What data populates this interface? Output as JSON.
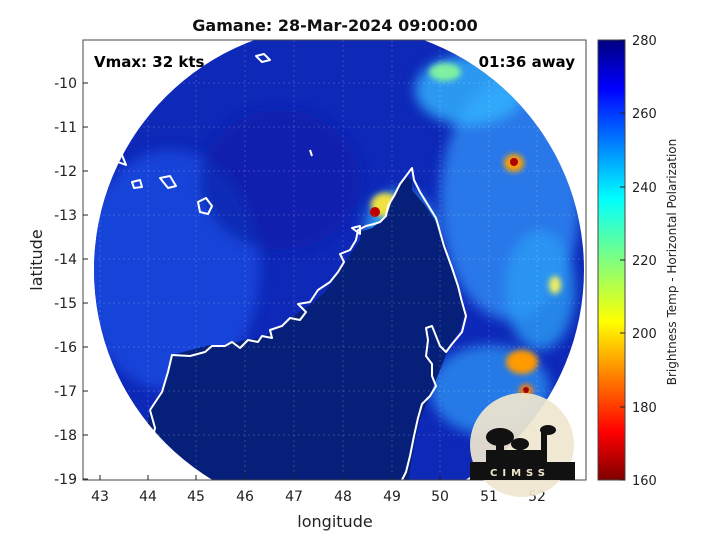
{
  "title": "Gamane: 28-Mar-2024 09:00:00",
  "annotations": {
    "vmax": "Vmax: 32 kts",
    "time_away": "01:36 away"
  },
  "xaxis": {
    "label": "longitude",
    "range": [
      42.6,
      52.9
    ],
    "ticks": [
      43,
      44,
      45,
      46,
      47,
      48,
      49,
      50,
      51,
      52
    ]
  },
  "yaxis": {
    "label": "latitude",
    "range": [
      -19.05,
      -9.15
    ],
    "ticks": [
      -10,
      -11,
      -12,
      -13,
      -14,
      -15,
      -16,
      -17,
      -18,
      -19
    ]
  },
  "colorbar": {
    "label": "Brightness Temp - Horizontal Polarization",
    "range": [
      160,
      280
    ],
    "ticks": [
      280,
      260,
      240,
      220,
      200,
      180,
      160
    ],
    "colormap": "jet"
  },
  "grid": true,
  "logo": {
    "text": "CIMSS"
  },
  "colors": {
    "background_clear": "#0a1c8c",
    "land_cold": "#06207a",
    "coast": "#ffffff"
  }
}
